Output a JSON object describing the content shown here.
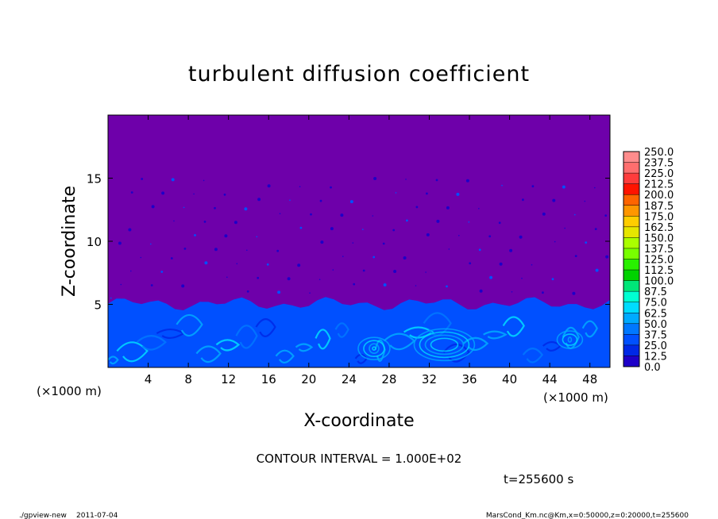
{
  "chart_data": {
    "type": "heatmap",
    "title": "turbulent diffusion coefficient",
    "xlabel": "X-coordinate",
    "ylabel": "Z-coordinate",
    "x_unit": "(×1000 m)",
    "y_unit": "(×1000 m)",
    "xlim": [
      0,
      50
    ],
    "ylim": [
      0,
      20
    ],
    "x_ticks": [
      4,
      8,
      12,
      16,
      20,
      24,
      28,
      32,
      36,
      40,
      44,
      48
    ],
    "y_ticks": [
      5,
      10,
      15
    ],
    "colorbar": {
      "levels": [
        "250.0",
        "237.5",
        "225.0",
        "212.5",
        "200.0",
        "187.5",
        "175.0",
        "162.5",
        "150.0",
        "137.5",
        "125.0",
        "112.5",
        "100.0",
        "87.5",
        "75.0",
        "62.5",
        "50.0",
        "37.5",
        "25.0",
        "12.5",
        "0.0"
      ],
      "colors": [
        "#ff8c8c",
        "#ff6e6e",
        "#ff3c3c",
        "#ff1400",
        "#ff6400",
        "#ff9600",
        "#ffcd00",
        "#e6e600",
        "#aaff00",
        "#78ff00",
        "#28f000",
        "#00d200",
        "#00e678",
        "#00ffd2",
        "#00dcff",
        "#00aaff",
        "#0078ff",
        "#0050ff",
        "#0028e6",
        "#1e00c8",
        "#6e00aa"
      ]
    },
    "field_summary": {
      "background_value": "0.0",
      "boundary_layer_top_km": [
        4.5,
        5.6
      ],
      "boundary_layer_color": "#0050ff",
      "background_color": "#6e00aa"
    }
  },
  "annotations": {
    "contour_interval": "CONTOUR INTERVAL = 1.000E+02",
    "time": "t=255600 s",
    "program": "./gpview-new",
    "date": "2011-07-04",
    "source": "MarsCond_Km.nc@Km,x=0:50000,z=0:20000,t=255600"
  }
}
